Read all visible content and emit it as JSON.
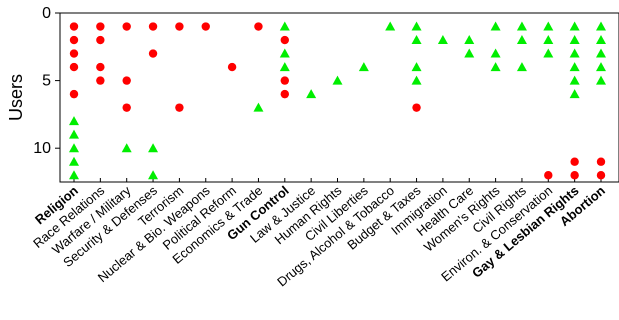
{
  "chart_data": {
    "type": "scatter",
    "ylabel": "Users",
    "ylim": [
      0,
      12.5
    ],
    "y_inverted": true,
    "yticks": [
      0,
      5,
      10
    ],
    "grid": false,
    "categories": [
      {
        "label": "Religion",
        "bold": true
      },
      {
        "label": "Race Relations",
        "bold": false
      },
      {
        "label": "Warfare / Military",
        "bold": false
      },
      {
        "label": "Security & Defenses",
        "bold": false
      },
      {
        "label": "Terrorism",
        "bold": false
      },
      {
        "label": "Nuclear & Bio. Weapons",
        "bold": false
      },
      {
        "label": "Political Reform",
        "bold": false
      },
      {
        "label": "Economics & Trade",
        "bold": false
      },
      {
        "label": "Gun Control",
        "bold": true
      },
      {
        "label": "Law & Justice",
        "bold": false
      },
      {
        "label": "Human Rights",
        "bold": false
      },
      {
        "label": "Civil Liberties",
        "bold": false
      },
      {
        "label": "Drugs, Alcohol & Tobacco",
        "bold": false
      },
      {
        "label": "Budget & Taxes",
        "bold": false
      },
      {
        "label": "Immigration",
        "bold": false
      },
      {
        "label": "Health Care",
        "bold": false
      },
      {
        "label": "Women's Rights",
        "bold": false
      },
      {
        "label": "Civil Rights",
        "bold": false
      },
      {
        "label": "Environ. & Conservation",
        "bold": false
      },
      {
        "label": "Gay & Lesbian Rights",
        "bold": true
      },
      {
        "label": "Abortion",
        "bold": true
      }
    ],
    "series": [
      {
        "marker": "circle",
        "color": "#ff0000",
        "points": [
          [
            0,
            1
          ],
          [
            0,
            2
          ],
          [
            0,
            3
          ],
          [
            0,
            4
          ],
          [
            0,
            6
          ],
          [
            1,
            1
          ],
          [
            1,
            2
          ],
          [
            1,
            4
          ],
          [
            1,
            5
          ],
          [
            2,
            1
          ],
          [
            2,
            5
          ],
          [
            2,
            7
          ],
          [
            3,
            1
          ],
          [
            3,
            3
          ],
          [
            4,
            1
          ],
          [
            4,
            7
          ],
          [
            5,
            1
          ],
          [
            6,
            4
          ],
          [
            7,
            1
          ],
          [
            8,
            2
          ],
          [
            8,
            5
          ],
          [
            8,
            6
          ],
          [
            13,
            7
          ],
          [
            18,
            12
          ],
          [
            19,
            11
          ],
          [
            19,
            12
          ],
          [
            20,
            11
          ],
          [
            20,
            12
          ]
        ]
      },
      {
        "marker": "triangle",
        "color": "#00ee00",
        "points": [
          [
            0,
            8
          ],
          [
            0,
            9
          ],
          [
            0,
            10
          ],
          [
            0,
            11
          ],
          [
            0,
            12
          ],
          [
            2,
            10
          ],
          [
            3,
            10
          ],
          [
            3,
            12
          ],
          [
            7,
            7
          ],
          [
            8,
            1
          ],
          [
            8,
            3
          ],
          [
            8,
            4
          ],
          [
            9,
            6
          ],
          [
            10,
            5
          ],
          [
            11,
            4
          ],
          [
            12,
            1
          ],
          [
            13,
            1
          ],
          [
            13,
            2
          ],
          [
            13,
            4
          ],
          [
            13,
            5
          ],
          [
            14,
            2
          ],
          [
            15,
            2
          ],
          [
            15,
            3
          ],
          [
            16,
            1
          ],
          [
            16,
            3
          ],
          [
            16,
            4
          ],
          [
            17,
            1
          ],
          [
            17,
            2
          ],
          [
            17,
            4
          ],
          [
            18,
            1
          ],
          [
            18,
            2
          ],
          [
            18,
            3
          ],
          [
            19,
            1
          ],
          [
            19,
            2
          ],
          [
            19,
            3
          ],
          [
            19,
            4
          ],
          [
            19,
            5
          ],
          [
            19,
            6
          ],
          [
            20,
            1
          ],
          [
            20,
            2
          ],
          [
            20,
            3
          ],
          [
            20,
            4
          ],
          [
            20,
            5
          ]
        ]
      }
    ]
  }
}
